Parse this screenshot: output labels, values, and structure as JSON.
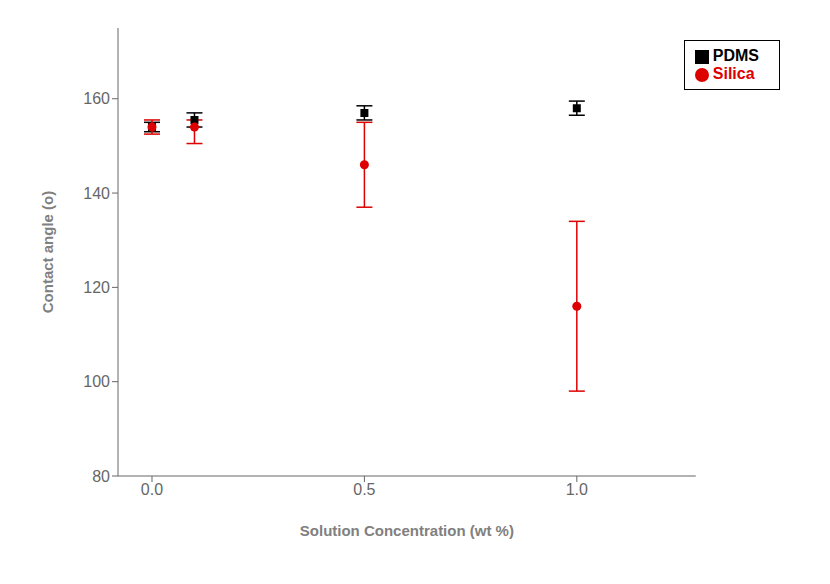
{
  "chart_data": {
    "type": "scatter",
    "xlabel": "Solution Concentration (wt %)",
    "ylabel": "Contact angle (o)",
    "xlim": [
      -0.08,
      1.28
    ],
    "ylim": [
      80,
      175
    ],
    "xticks": [
      {
        "value": 0.0,
        "label": "0.0"
      },
      0.5,
      {
        "value": 1.0,
        "label": "1.0"
      }
    ],
    "yticks": [
      80,
      100,
      120,
      140,
      160
    ],
    "grid": false,
    "legend": "upper right",
    "series": [
      {
        "name": "PDMS",
        "color": "#000000",
        "marker": "square",
        "x": [
          0.0,
          0.1,
          0.5,
          1.0
        ],
        "values": [
          154.0,
          155.5,
          157.0,
          158.0
        ],
        "yerr": [
          1.0,
          1.5,
          1.5,
          1.5
        ]
      },
      {
        "name": "Silica",
        "color": "#dd0000",
        "marker": "circle",
        "x": [
          0.0,
          0.1,
          0.5,
          1.0
        ],
        "values": [
          154.0,
          154.0,
          146.0,
          116.0
        ],
        "yerr_lower": [
          1.5,
          3.5,
          9.0,
          18.0
        ],
        "yerr_upper": [
          1.5,
          1.5,
          9.0,
          18.0
        ]
      }
    ]
  }
}
